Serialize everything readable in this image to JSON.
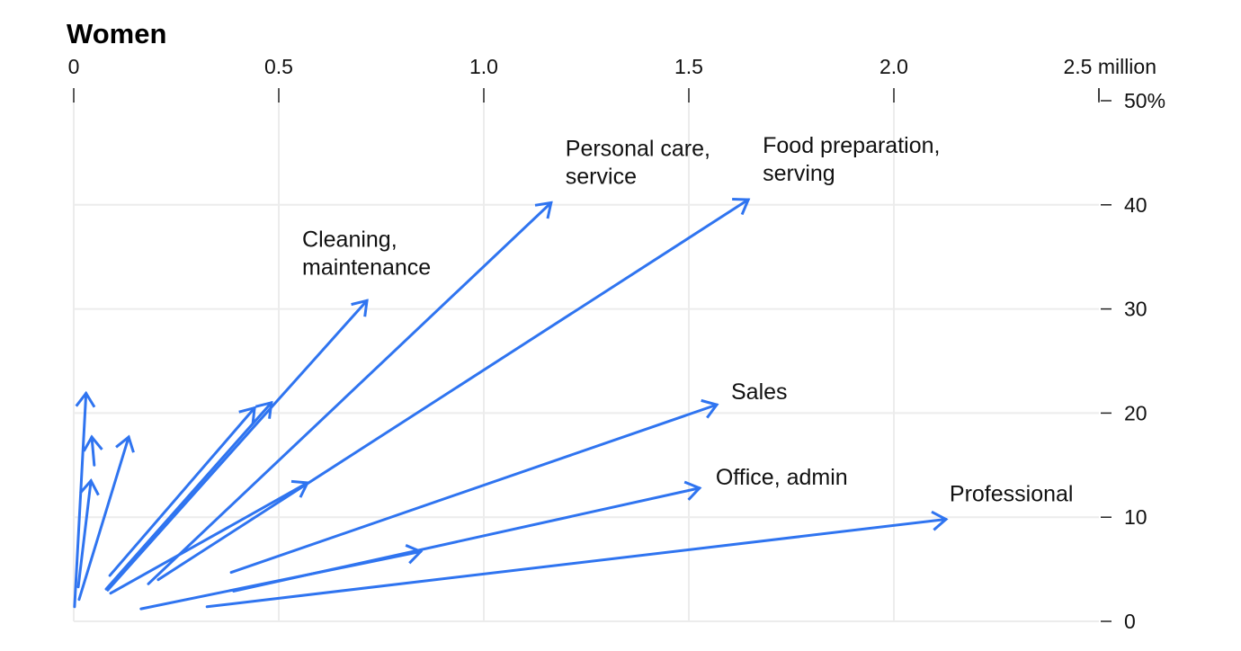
{
  "chart_data": {
    "type": "line",
    "subtype": "arrow-plot",
    "title": "Women",
    "x_unit_label": "2.5 million",
    "xlim": [
      0,
      2.5
    ],
    "ylim": [
      0,
      50
    ],
    "x_ticks": [
      0,
      0.5,
      1.0,
      1.5,
      2.0,
      2.5
    ],
    "x_tick_labels": [
      "0",
      "0.5",
      "1.0",
      "1.5",
      "2.0",
      "2.5 million"
    ],
    "y_ticks": [
      0,
      10,
      20,
      30,
      40,
      50
    ],
    "y_tick_labels": [
      "0",
      "10",
      "20",
      "30",
      "40",
      "50%"
    ],
    "y_axis_position": "right",
    "x_axis_position": "top",
    "grid": true,
    "color": "#2f74f0",
    "series": [
      {
        "from": [
          0.002,
          1.4
        ],
        "to": [
          0.03,
          21.9
        ]
      },
      {
        "from": [
          0.05,
          15.0
        ],
        "to": [
          0.044,
          17.7
        ]
      },
      {
        "from": [
          0.011,
          3.3
        ],
        "to": [
          0.042,
          13.5
        ]
      },
      {
        "from": [
          0.013,
          2.1
        ],
        "to": [
          0.134,
          17.7
        ]
      },
      {
        "from": [
          0.088,
          4.4
        ],
        "to": [
          0.441,
          20.5
        ]
      },
      {
        "from": [
          0.079,
          3.1
        ],
        "to": [
          0.482,
          21.0
        ]
      },
      {
        "name": [
          "Cleaning,",
          "maintenance"
        ],
        "from": [
          0.083,
          3.0
        ],
        "to": [
          0.715,
          30.8
        ]
      },
      {
        "from": [
          0.09,
          2.7
        ],
        "to": [
          0.57,
          13.3
        ]
      },
      {
        "name": [
          "Personal care,",
          "service"
        ],
        "from": [
          0.182,
          3.6
        ],
        "to": [
          1.164,
          40.2
        ]
      },
      {
        "name": [
          "Food preparation,",
          "serving"
        ],
        "from": [
          0.206,
          4.0
        ],
        "to": [
          1.645,
          40.5
        ]
      },
      {
        "name": [
          "Sales"
        ],
        "from": [
          0.384,
          4.7
        ],
        "to": [
          1.568,
          20.8
        ]
      },
      {
        "from": [
          0.164,
          1.2
        ],
        "to": [
          0.846,
          6.7
        ]
      },
      {
        "name": [
          "Office, admin"
        ],
        "from": [
          0.39,
          2.9
        ],
        "to": [
          1.526,
          12.8
        ]
      },
      {
        "name": [
          "Professional"
        ],
        "from": [
          0.325,
          1.4
        ],
        "to": [
          2.127,
          9.8
        ]
      }
    ]
  }
}
